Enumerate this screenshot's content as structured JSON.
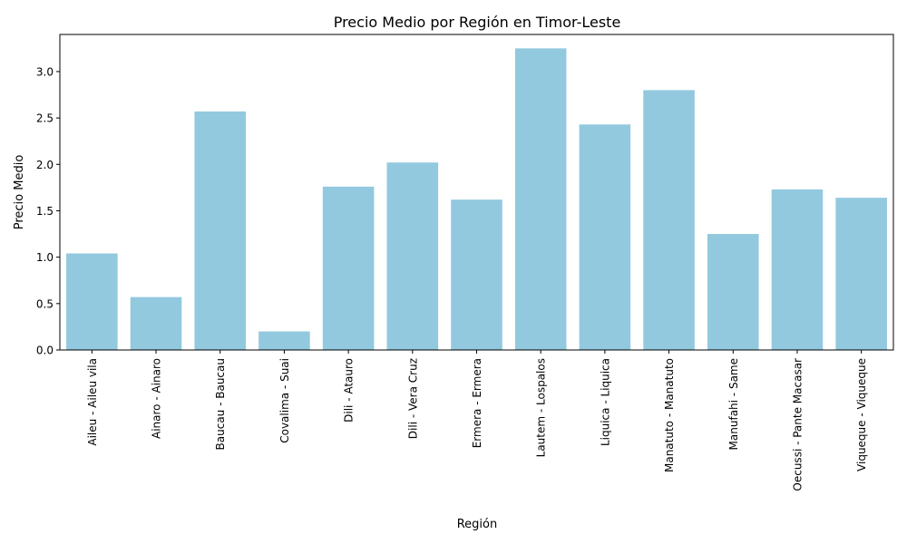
{
  "chart_data": {
    "type": "bar",
    "title": "Precio Medio por Región en Timor-Leste",
    "xlabel": "Región",
    "ylabel": "Precio Medio",
    "categories": [
      "Aileu - Aileu vila",
      "Ainaro - Ainaro",
      "Baucau - Baucau",
      "Covalima - Suai",
      "Dili - Atauro",
      "Dili - Vera Cruz",
      "Ermera - Ermera",
      "Lautem - Lospalos",
      "Liquica - Liquica",
      "Manatuto - Manatuto",
      "Manufahi - Same",
      "Oecussi - Pante Macasar",
      "Viqueque - Viqueque"
    ],
    "values": [
      1.04,
      0.57,
      2.57,
      0.2,
      1.76,
      2.02,
      1.62,
      3.25,
      2.43,
      2.8,
      1.25,
      1.73,
      1.64
    ],
    "ylim": [
      0,
      3.4
    ],
    "yticks": [
      "0.0",
      "0.5",
      "1.0",
      "1.5",
      "2.0",
      "2.5",
      "3.0"
    ],
    "grid": false,
    "colors": {
      "bar": "#92c9df",
      "axis": "#000000"
    }
  }
}
